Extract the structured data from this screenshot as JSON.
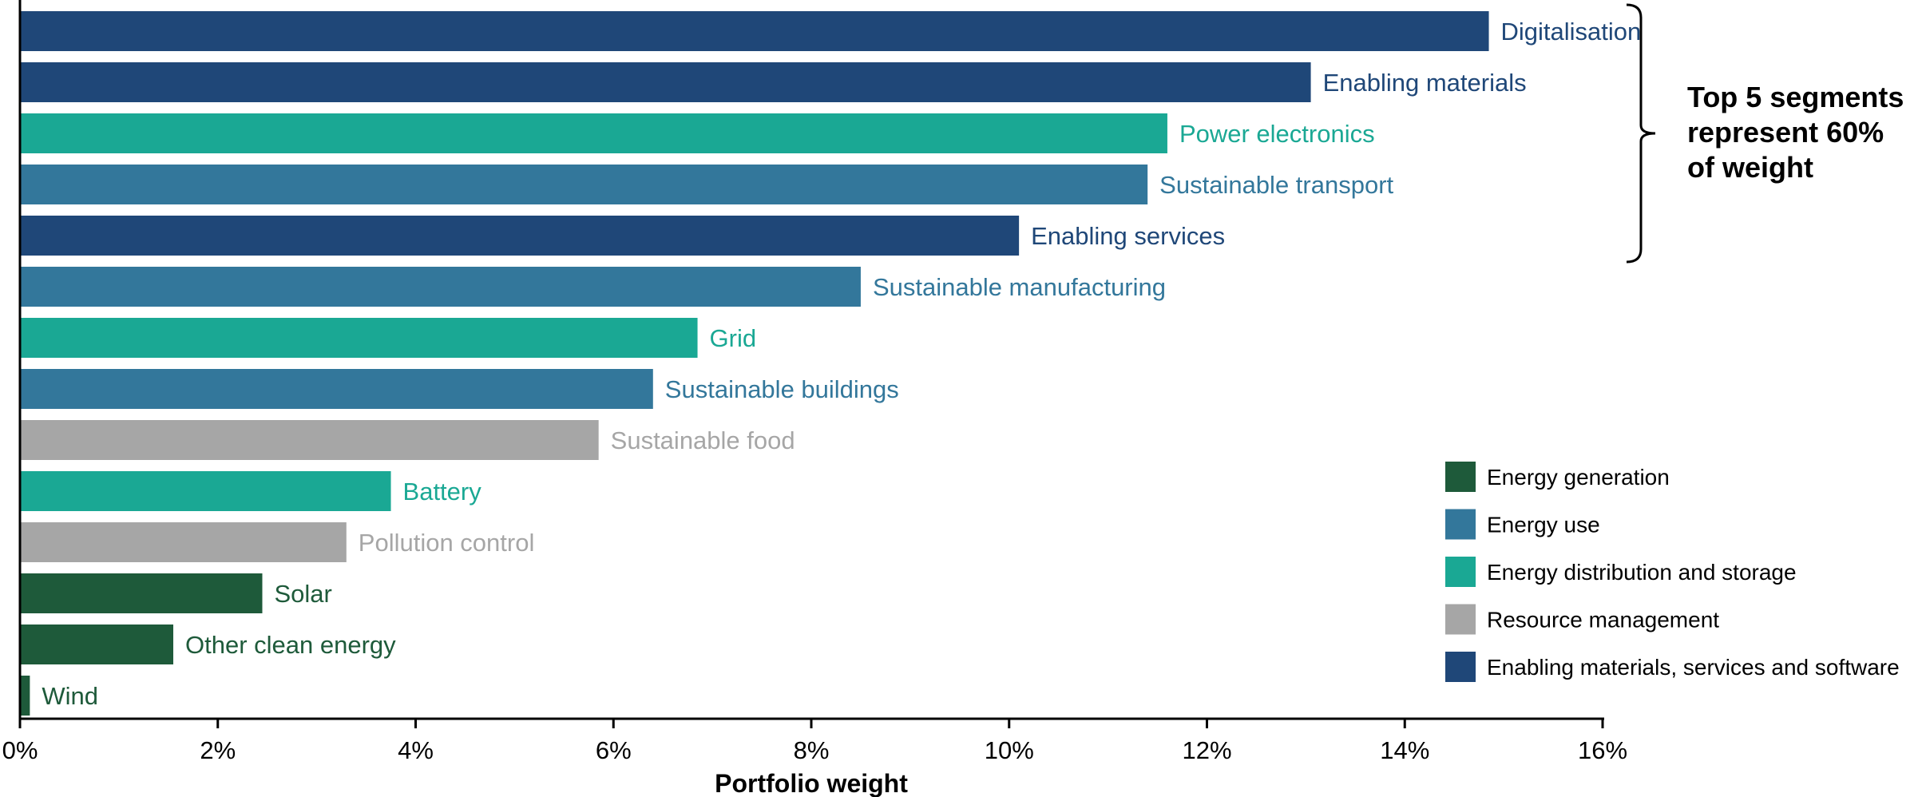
{
  "chart_data": {
    "type": "bar",
    "orientation": "horizontal",
    "xlabel": "Portfolio weight",
    "xlim": [
      0,
      16
    ],
    "xticks": [
      "0%",
      "2%",
      "4%",
      "6%",
      "8%",
      "10%",
      "12%",
      "14%",
      "16%"
    ],
    "grid": false,
    "legend_position": "bottom-right",
    "categories": [
      "Digitalisation",
      "Enabling materials",
      "Power electronics",
      "Sustainable transport",
      "Enabling services",
      "Sustainable manufacturing",
      "Grid",
      "Sustainable buildings",
      "Sustainable food",
      "Battery",
      "Pollution control",
      "Solar",
      "Other clean energy",
      "Wind"
    ],
    "values": [
      14.85,
      13.05,
      11.6,
      11.4,
      10.1,
      8.5,
      6.85,
      6.4,
      5.85,
      3.75,
      3.3,
      2.45,
      1.55,
      0.1
    ],
    "groups": [
      "enabling",
      "enabling",
      "distribution",
      "use",
      "enabling",
      "use",
      "distribution",
      "use",
      "resource",
      "distribution",
      "resource",
      "generation",
      "generation",
      "generation"
    ],
    "legend": [
      {
        "key": "generation",
        "label": "Energy generation",
        "color": "#1e5a3a"
      },
      {
        "key": "use",
        "label": "Energy use",
        "color": "#33779b"
      },
      {
        "key": "distribution",
        "label": "Energy distribution and storage",
        "color": "#1aa894"
      },
      {
        "key": "resource",
        "label": "Resource management",
        "color": "#a6a6a6"
      },
      {
        "key": "enabling",
        "label": "Enabling materials, services and software",
        "color": "#1f4778"
      }
    ],
    "annotation": {
      "lines": [
        "Top 5 segments",
        "represent 60%",
        "of weight"
      ],
      "bracket_spans_top": 5
    }
  }
}
